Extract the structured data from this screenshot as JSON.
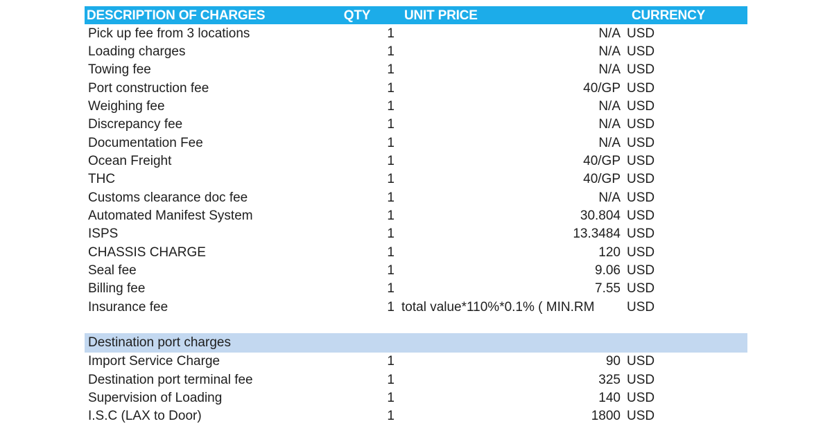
{
  "colors": {
    "header_bg": "#1cace9",
    "header_text": "#ffffff",
    "section_bg": "#c3d8f0",
    "body_text": "#1e1e1e"
  },
  "table": {
    "headers": {
      "description": "DESCRIPTION OF CHARGES",
      "qty": "QTY",
      "unit_price": "UNIT PRICE",
      "currency": "CURRENCY"
    },
    "rows": [
      {
        "description": "Pick up fee from 3 locations",
        "qty": "1",
        "unit_price": "N/A",
        "currency": "USD"
      },
      {
        "description": "Loading charges",
        "qty": "1",
        "unit_price": "N/A",
        "currency": "USD"
      },
      {
        "description": "Towing fee",
        "qty": "1",
        "unit_price": "N/A",
        "currency": "USD"
      },
      {
        "description": "Port construction fee",
        "qty": "1",
        "unit_price": "40/GP",
        "currency": "USD"
      },
      {
        "description": "Weighing fee",
        "qty": "1",
        "unit_price": "N/A",
        "currency": "USD"
      },
      {
        "description": "Discrepancy fee",
        "qty": "1",
        "unit_price": "N/A",
        "currency": "USD"
      },
      {
        "description": "Documentation Fee",
        "qty": "1",
        "unit_price": "N/A",
        "currency": "USD"
      },
      {
        "description": "Ocean Freight",
        "qty": "1",
        "unit_price": "40/GP",
        "currency": "USD"
      },
      {
        "description": "THC",
        "qty": "1",
        "unit_price": "40/GP",
        "currency": "USD"
      },
      {
        "description": "Customs clearance doc fee",
        "qty": "1",
        "unit_price": "N/A",
        "currency": "USD"
      },
      {
        "description": "Automated Manifest System",
        "qty": "1",
        "unit_price": "30.804",
        "currency": "USD"
      },
      {
        "description": "ISPS",
        "qty": "1",
        "unit_price": "13.3484",
        "currency": "USD"
      },
      {
        "description": "CHASSIS CHARGE",
        "qty": "1",
        "unit_price": "120",
        "currency": "USD"
      },
      {
        "description": "Seal fee",
        "qty": "1",
        "unit_price": "9.06",
        "currency": "USD"
      },
      {
        "description": "Billing fee",
        "qty": "1",
        "unit_price": "7.55",
        "currency": "USD"
      },
      {
        "description": "Insurance fee",
        "qty": "1",
        "unit_price": "total value*110%*0.1%  ( MIN.RM",
        "currency": "USD",
        "unit_price_align": "left"
      }
    ],
    "section_label": "Destination port charges",
    "section_rows": [
      {
        "description": "Import Service Charge",
        "qty": "1",
        "unit_price": "90",
        "currency": "USD"
      },
      {
        "description": "Destination port terminal fee",
        "qty": "1",
        "unit_price": "325",
        "currency": "USD"
      },
      {
        "description": "Supervision of Loading",
        "qty": "1",
        "unit_price": "140",
        "currency": "USD"
      },
      {
        "description": "I.S.C (LAX to Door)",
        "qty": "1",
        "unit_price": "1800",
        "currency": "USD"
      }
    ]
  }
}
